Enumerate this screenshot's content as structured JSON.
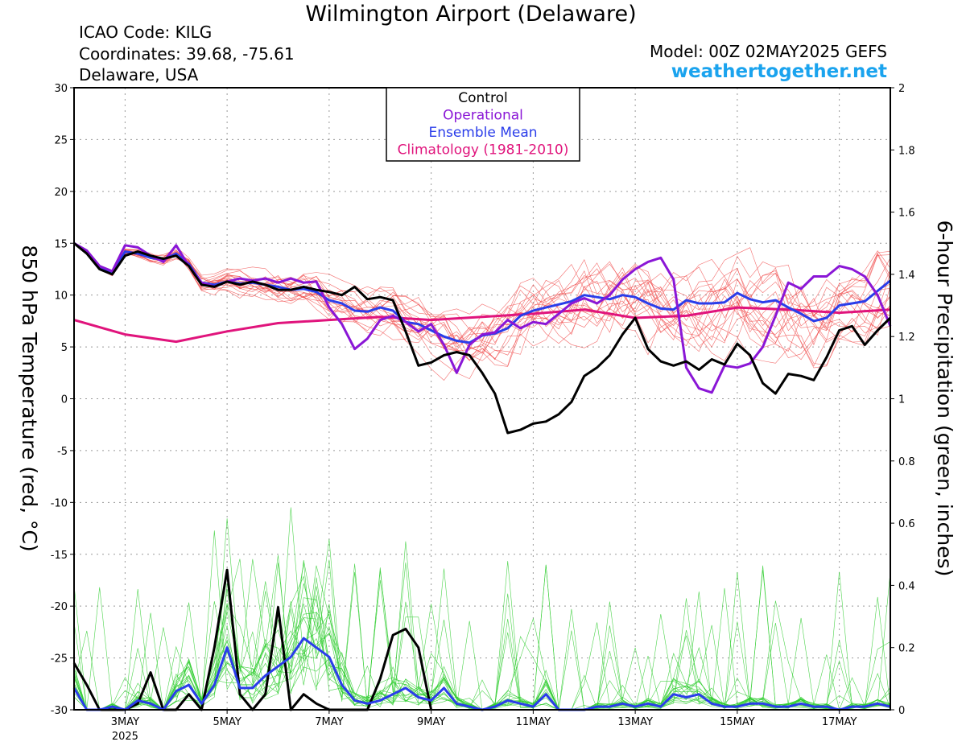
{
  "header": {
    "title": "Wilmington Airport (Delaware)",
    "icao": "ICAO Code: KILG",
    "coordinates": "Coordinates: 39.68, -75.61",
    "region": "Delaware, USA",
    "model": "Model: 00Z 02MAY2025 GEFS",
    "site": "weathertogether.net"
  },
  "colors": {
    "control": "#000000",
    "operational": "#8a16d6",
    "ensemble_mean": "#2a3dea",
    "climatology": "#e0147c",
    "members_temp": "#f04a4a",
    "members_precip": "#2ecc2e"
  },
  "chart_data": {
    "type": "line",
    "ylabel_left": "850 hPa Temperature (red, °C)",
    "ylabel_right": "6-hour Precipitation (green, inches)",
    "ylim_left": [
      -30,
      30
    ],
    "ylim_right": [
      0,
      2
    ],
    "yticks_left": [
      "30",
      "25",
      "20",
      "15",
      "10",
      "5",
      "0",
      "-5",
      "-10",
      "-15",
      "-20",
      "-25",
      "-30"
    ],
    "yticks_right": [
      "2",
      "1.8",
      "1.6",
      "1.4",
      "1.2",
      "1",
      "0.8",
      "0.6",
      "0.4",
      "0.2",
      "0"
    ],
    "x_range_days": [
      "2025-05-02 00Z",
      "2025-05-18 00Z"
    ],
    "xticks": [
      {
        "label": "3MAY",
        "sub": "2025",
        "day": 3
      },
      {
        "label": "5MAY",
        "day": 5
      },
      {
        "label": "7MAY",
        "day": 7
      },
      {
        "label": "9MAY",
        "day": 9
      },
      {
        "label": "11MAY",
        "day": 11
      },
      {
        "label": "13MAY",
        "day": 13
      },
      {
        "label": "15MAY",
        "day": 15
      },
      {
        "label": "17MAY",
        "day": 17
      }
    ],
    "legend": [
      "Control",
      "Operational",
      "Ensemble Mean",
      "Climatology (1981-2010)"
    ],
    "legend_position": "top-center",
    "grid": true,
    "temperature_series": [
      {
        "name": "Control",
        "x": [
          2,
          2.25,
          2.5,
          2.75,
          3,
          3.25,
          3.5,
          3.75,
          4,
          4.25,
          4.5,
          4.75,
          5,
          5.25,
          5.5,
          5.75,
          6,
          6.25,
          6.5,
          6.75,
          7,
          7.25,
          7.5,
          7.75,
          8,
          8.25,
          8.5,
          8.75,
          9,
          9.25,
          9.5,
          9.75,
          10,
          10.25,
          10.5,
          10.75,
          11,
          11.25,
          11.5,
          11.75,
          12,
          12.25,
          12.5,
          12.75,
          13,
          13.25,
          13.5,
          13.75,
          14,
          14.25,
          14.5,
          14.75,
          15,
          15.25,
          15.5,
          15.75,
          16,
          16.25,
          16.5,
          16.75,
          17,
          17.25,
          17.5,
          17.75,
          18
        ],
        "values": [
          15,
          14,
          12.5,
          12,
          13.8,
          14.2,
          13.8,
          13.5,
          13.8,
          12.8,
          11,
          10.8,
          11.3,
          11,
          11.3,
          11,
          10.5,
          10.5,
          10.8,
          10.5,
          10.3,
          10,
          10.8,
          9.6,
          9.8,
          9.5,
          6.5,
          3.2,
          3.5,
          4.2,
          4.5,
          4.2,
          2.5,
          0.5,
          -3.3,
          -3,
          -2.4,
          -2.2,
          -1.5,
          -0.3,
          2.2,
          3,
          4.2,
          6.2,
          7.8,
          4.8,
          3.6,
          3.2,
          3.6,
          2.8,
          3.8,
          3.3,
          5.3,
          4.2,
          1.5,
          0.5,
          2.4,
          2.2,
          1.8,
          4,
          6.6,
          7,
          5.2,
          6.6,
          7.8
        ]
      },
      {
        "name": "Operational",
        "x": [
          2,
          2.25,
          2.5,
          2.75,
          3,
          3.25,
          3.5,
          3.75,
          4,
          4.25,
          4.5,
          4.75,
          5,
          5.25,
          5.5,
          5.75,
          6,
          6.25,
          6.5,
          6.75,
          7,
          7.25,
          7.5,
          7.75,
          8,
          8.25,
          8.5,
          8.75,
          9,
          9.25,
          9.5,
          9.75,
          10,
          10.25,
          10.5,
          10.75,
          11,
          11.25,
          11.5,
          11.75,
          12,
          12.25,
          12.5,
          12.75,
          13,
          13.25,
          13.5,
          13.75,
          14,
          14.25,
          14.5,
          14.75,
          15,
          15.25,
          15.5,
          15.75,
          16,
          16.25,
          16.5,
          16.75,
          17,
          17.25,
          17.5,
          17.75,
          18
        ],
        "values": [
          15,
          14.3,
          12.8,
          12.3,
          14.8,
          14.6,
          13.8,
          13.2,
          14.8,
          12.8,
          11.2,
          10.8,
          11.3,
          11.6,
          11.4,
          11.6,
          11.2,
          11.6,
          11.2,
          11.3,
          8.8,
          7.2,
          4.8,
          5.8,
          7.6,
          8,
          7.4,
          6.5,
          7.2,
          5.2,
          2.5,
          5.2,
          6.2,
          6.4,
          7.6,
          6.8,
          7.4,
          7.2,
          8.2,
          9.2,
          9.7,
          9.2,
          10,
          11.5,
          12.5,
          13.2,
          13.6,
          11.5,
          3,
          1,
          0.6,
          3.2,
          3,
          3.4,
          5,
          8,
          11.2,
          10.6,
          11.8,
          11.8,
          12.8,
          12.5,
          11.8,
          10,
          7
        ]
      },
      {
        "name": "Ensemble Mean",
        "x": [
          2,
          2.25,
          2.5,
          2.75,
          3,
          3.25,
          3.5,
          3.75,
          4,
          4.25,
          4.5,
          4.75,
          5,
          5.25,
          5.5,
          5.75,
          6,
          6.25,
          6.5,
          6.75,
          7,
          7.25,
          7.5,
          7.75,
          8,
          8.25,
          8.5,
          8.75,
          9,
          9.25,
          9.5,
          9.75,
          10,
          10.25,
          10.5,
          10.75,
          11,
          11.25,
          11.5,
          11.75,
          12,
          12.25,
          12.5,
          12.75,
          13,
          13.25,
          13.5,
          13.75,
          14,
          14.25,
          14.5,
          14.75,
          15,
          15.25,
          15.5,
          15.75,
          16,
          16.25,
          16.5,
          16.75,
          17,
          17.25,
          17.5,
          17.75,
          18
        ],
        "values": [
          15,
          14.2,
          12.6,
          12.1,
          14.2,
          14,
          13.6,
          13.4,
          14,
          13,
          11.2,
          11,
          11.3,
          11.1,
          11.2,
          11,
          10.8,
          10.5,
          10.6,
          10.3,
          9.5,
          9.2,
          8.5,
          8.4,
          8.8,
          8.5,
          7.4,
          7.2,
          6.6,
          6,
          5.6,
          5.4,
          6.1,
          6.3,
          6.8,
          8,
          8.5,
          8.8,
          9.1,
          9.4,
          10,
          9.8,
          9.6,
          10,
          9.8,
          9.2,
          8.7,
          8.6,
          9.5,
          9.2,
          9.2,
          9.3,
          10.2,
          9.6,
          9.3,
          9.5,
          8.8,
          8.2,
          7.5,
          7.8,
          9,
          9.2,
          9.4,
          10.4,
          11.4
        ]
      },
      {
        "name": "Climatology (1981-2010)",
        "x": [
          2,
          3,
          4,
          5,
          6,
          7,
          8,
          9,
          10,
          11,
          12,
          13,
          14,
          15,
          16,
          17,
          18
        ],
        "values": [
          7.6,
          6.2,
          5.5,
          6.5,
          7.3,
          7.6,
          7.9,
          7.6,
          7.9,
          8.2,
          8.6,
          7.8,
          8,
          8.8,
          8.6,
          8.3,
          8.6
        ]
      }
    ],
    "precipitation_series": [
      {
        "name": "Control",
        "x": [
          2,
          2.25,
          2.5,
          2.75,
          3,
          3.25,
          3.5,
          3.75,
          4,
          4.25,
          4.5,
          4.75,
          5,
          5.25,
          5.5,
          5.75,
          6,
          6.25,
          6.5,
          6.75,
          7,
          7.25,
          7.5,
          7.75,
          8,
          8.25,
          8.5,
          8.75,
          9
        ],
        "values": [
          0.15,
          0.08,
          0,
          0,
          0,
          0.02,
          0.12,
          0,
          0,
          0.05,
          0,
          0.2,
          0.45,
          0.05,
          0,
          0.05,
          0.33,
          0,
          0.05,
          0.02,
          0,
          0,
          0,
          0,
          0.1,
          0.24,
          0.26,
          0.2,
          0
        ]
      },
      {
        "name": "Ensemble Mean",
        "x": [
          2,
          2.25,
          2.5,
          2.75,
          3,
          3.25,
          3.5,
          3.75,
          4,
          4.25,
          4.5,
          4.75,
          5,
          5.25,
          5.5,
          5.75,
          6,
          6.25,
          6.5,
          6.75,
          7,
          7.25,
          7.5,
          7.75,
          8,
          8.25,
          8.5,
          8.75,
          9,
          9.25,
          9.5,
          9.75,
          10,
          10.25,
          10.5,
          10.75,
          11,
          11.25,
          11.5,
          11.75,
          12,
          12.25,
          12.5,
          12.75,
          13,
          13.25,
          13.5,
          13.75,
          14,
          14.25,
          14.5,
          14.75,
          15,
          15.25,
          15.5,
          15.75,
          16,
          16.25,
          16.5,
          16.75,
          17,
          17.25,
          17.5,
          17.75,
          18
        ],
        "values": [
          0.07,
          0,
          0,
          0.01,
          0,
          0.03,
          0.02,
          0,
          0.06,
          0.08,
          0.02,
          0.08,
          0.2,
          0.07,
          0.07,
          0.11,
          0.14,
          0.17,
          0.23,
          0.2,
          0.17,
          0.08,
          0.03,
          0.02,
          0.03,
          0.05,
          0.07,
          0.04,
          0.03,
          0.07,
          0.02,
          0.01,
          0,
          0.01,
          0.03,
          0.02,
          0.01,
          0.05,
          0,
          0,
          0,
          0.01,
          0.01,
          0.02,
          0.01,
          0.02,
          0.01,
          0.05,
          0.04,
          0.05,
          0.02,
          0.01,
          0.01,
          0.02,
          0.02,
          0.01,
          0.01,
          0.02,
          0.01,
          0.01,
          0,
          0.01,
          0.01,
          0.02,
          0.01
        ]
      }
    ]
  }
}
